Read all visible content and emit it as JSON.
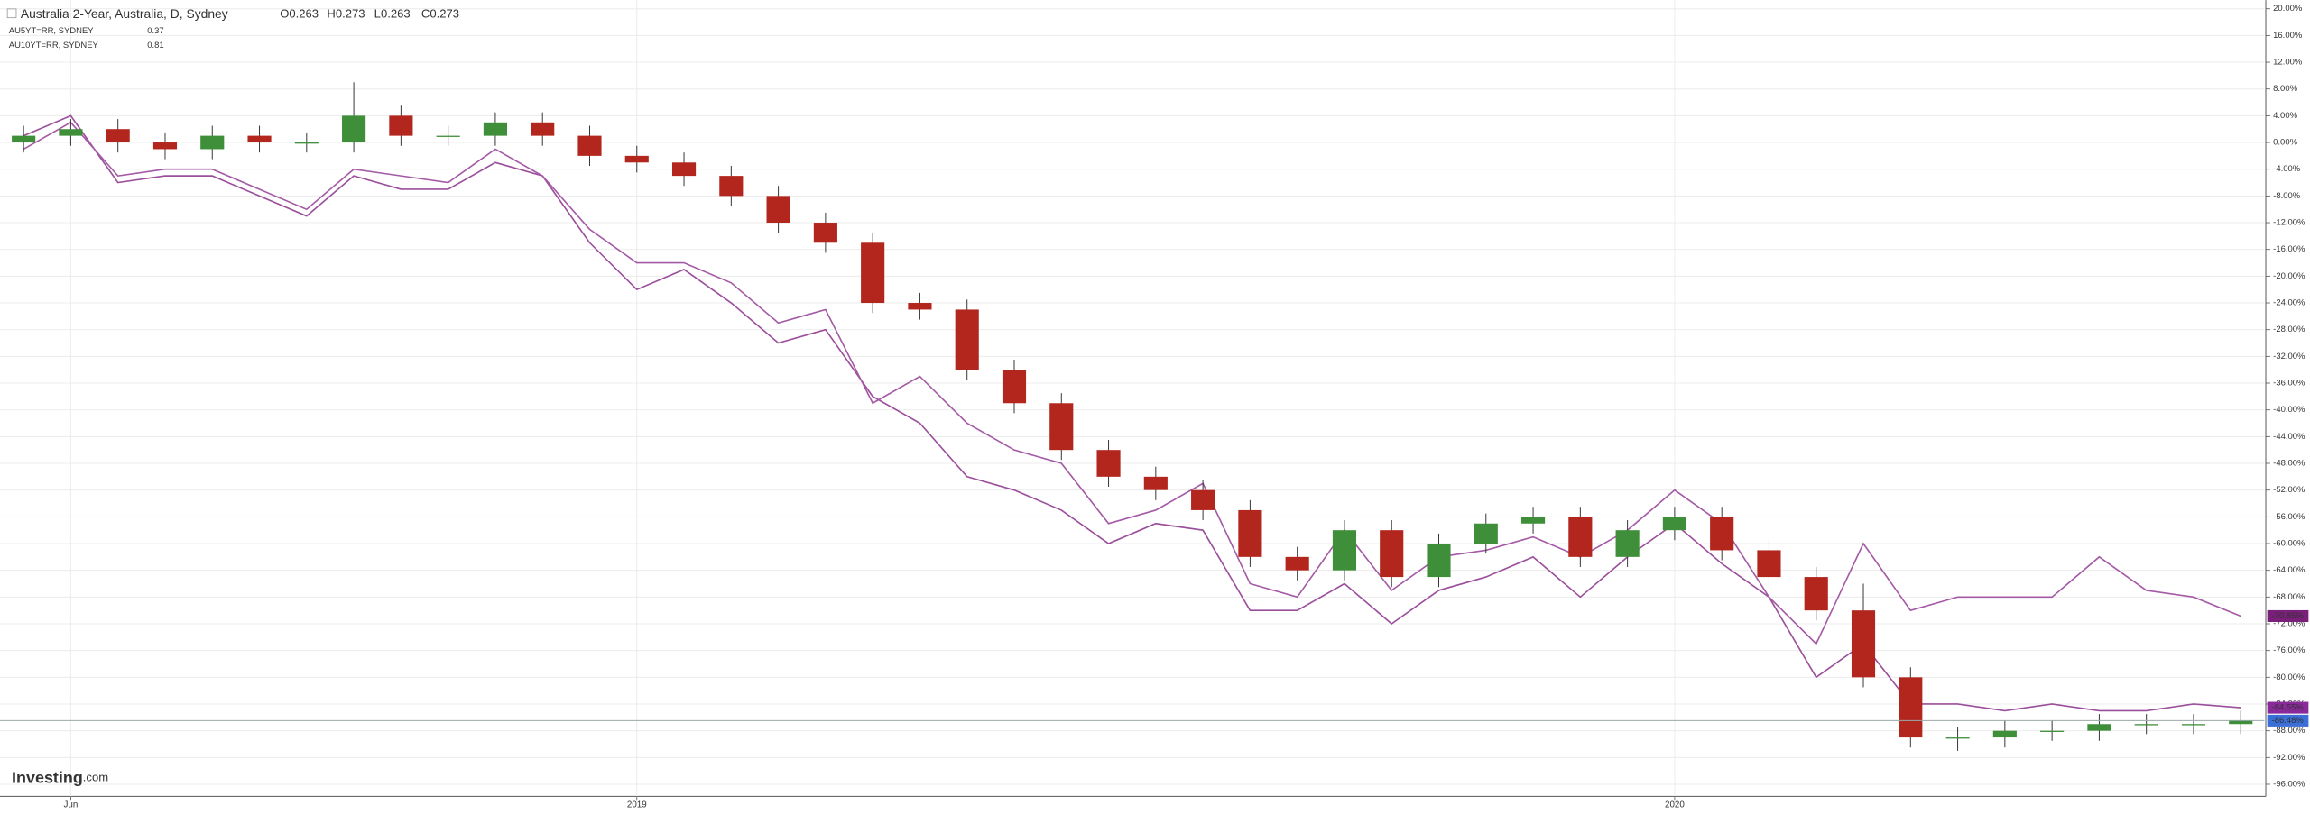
{
  "chart_data": {
    "type": "candlestick",
    "title": "Australia 2-Year, Australia, D, Sydney",
    "ohlc": [
      {
        "label": "O",
        "value": 0.263
      },
      {
        "label": "H",
        "value": 0.273
      },
      {
        "label": "L",
        "value": 0.263
      },
      {
        "label": "C",
        "value": 0.273
      }
    ],
    "categories": [
      null,
      "Jun",
      null,
      null,
      null,
      null,
      null,
      null,
      null,
      null,
      null,
      null,
      null,
      "2019",
      null,
      null,
      null,
      null,
      null,
      null,
      null,
      null,
      null,
      null,
      null,
      null,
      null,
      null,
      null,
      null,
      null,
      null,
      null,
      null,
      null,
      "2020",
      null,
      null,
      null,
      null,
      null,
      null,
      null,
      null,
      null,
      null,
      null,
      null
    ],
    "open": [
      0,
      1,
      2,
      0,
      -1,
      1,
      0,
      0,
      4,
      1,
      1,
      3,
      1,
      -2,
      -3,
      -5,
      -8,
      -12,
      -15,
      -24,
      -25,
      -34,
      -39,
      -46,
      -50,
      -52,
      -55,
      -62,
      -64,
      -58,
      -65,
      -60,
      -57,
      -56,
      -62,
      -58,
      -56,
      -61,
      -65,
      -70,
      -80,
      -89,
      -89,
      -88,
      -88,
      -87,
      -87,
      -87
    ],
    "high": [
      2.5,
      3.5,
      3.5,
      1.5,
      2.5,
      2.5,
      1.5,
      9,
      5.5,
      2.5,
      4.5,
      4.5,
      2.5,
      -0.5,
      -1.5,
      -3.5,
      -6.5,
      -10.5,
      -13.5,
      -22.5,
      -23.5,
      -32.5,
      -37.5,
      -44.5,
      -48.5,
      -50.5,
      -53.5,
      -60.5,
      -56.5,
      -56.5,
      -58.5,
      -55.5,
      -54.5,
      -54.5,
      -56.5,
      -54.5,
      -54.5,
      -59.5,
      -63.5,
      -66,
      -78.5,
      -87.5,
      -86.5,
      -86.5,
      -85.5,
      -85.5,
      -85.5,
      -85
    ],
    "low": [
      -1.5,
      -0.5,
      -1.5,
      -2.5,
      -2.5,
      -1.5,
      -1.5,
      -1.5,
      -0.5,
      -0.5,
      -0.5,
      -0.5,
      -3.5,
      -4.5,
      -6.5,
      -9.5,
      -13.5,
      -16.5,
      -25.5,
      -26.5,
      -35.5,
      -40.5,
      -47.5,
      -51.5,
      -53.5,
      -56.5,
      -63.5,
      -65.5,
      -65.5,
      -66.5,
      -66.5,
      -61.5,
      -58.5,
      -63.5,
      -63.5,
      -59.5,
      -62.5,
      -66.5,
      -71.5,
      -81.5,
      -90.5,
      -91,
      -90.5,
      -89.5,
      -89.5,
      -88.5,
      -88.5,
      -88.5
    ],
    "close": [
      1,
      2,
      0,
      -1,
      1,
      0,
      0,
      4,
      1,
      1,
      3,
      1,
      -2,
      -3,
      -5,
      -8,
      -12,
      -15,
      -24,
      -25,
      -34,
      -39,
      -46,
      -50,
      -52,
      -55,
      -62,
      -64,
      -58,
      -65,
      -60,
      -57,
      -56,
      -62,
      -58,
      -56,
      -61,
      -65,
      -70,
      -80,
      -89,
      -89,
      -88,
      -88,
      -87,
      -87,
      -87,
      -86.48
    ],
    "up_color": "#3f8f3a",
    "down_color": "#b3261e",
    "series": [
      {
        "name": "AU5YT=RR, SYDNEY",
        "last": 0.37,
        "last_color": "#a0224a",
        "color": "#9b4f9b",
        "values": [
          1,
          4,
          -6,
          -5,
          -5,
          -8,
          -11,
          -5,
          -7,
          -7,
          -3,
          -5,
          -15,
          -22,
          -19,
          -24,
          -30,
          -28,
          -38,
          -42,
          -50,
          -52,
          -55,
          -60,
          -57,
          -58,
          -70,
          -70,
          -66,
          -72,
          -67,
          -65,
          -62,
          -68,
          -62,
          -57,
          -63,
          -68,
          -80,
          -75,
          -84,
          -84,
          -85,
          -84,
          -85,
          -85,
          -84,
          -84.55
        ]
      },
      {
        "name": "AU10YT=RR, SYDNEY",
        "last": 0.81,
        "last_color": "#a0224a",
        "color": "#a45aa4",
        "values": [
          -1,
          3,
          -5,
          -4,
          -4,
          -7,
          -10,
          -4,
          -5,
          -6,
          -1,
          -5,
          -13,
          -18,
          -18,
          -21,
          -27,
          -25,
          -39,
          -35,
          -42,
          -46,
          -48,
          -57,
          -55,
          -51,
          -66,
          -68,
          -58,
          -67,
          -62,
          -61,
          -59,
          -62,
          -58,
          -52,
          -57,
          -68,
          -75,
          -60,
          -70,
          -68,
          -68,
          -68,
          -62,
          -67,
          -68,
          -70.85
        ]
      }
    ],
    "annotations": [
      {
        "label": "-70.85%",
        "value": -70.85,
        "color": "#7a1f7a"
      },
      {
        "label": "-84.55%",
        "value": -84.55,
        "color": "#8a2a9a"
      },
      {
        "label": "-86.48%",
        "value": -86.48,
        "color": "#3a6fd8"
      }
    ],
    "ylim": [
      -97.8,
      21.3
    ],
    "yticks": [
      {
        "value": 20,
        "label": "20.00%"
      },
      {
        "value": 16,
        "label": "16.00%"
      },
      {
        "value": 12,
        "label": "12.00%"
      },
      {
        "value": 8,
        "label": "8.00%"
      },
      {
        "value": 4,
        "label": "4.00%"
      },
      {
        "value": 0,
        "label": "0.00%"
      },
      {
        "value": -4,
        "label": "-4.00%"
      },
      {
        "value": -8,
        "label": "-8.00%"
      },
      {
        "value": -12,
        "label": "-12.00%"
      },
      {
        "value": -16,
        "label": "-16.00%"
      },
      {
        "value": -20,
        "label": "-20.00%"
      },
      {
        "value": -24,
        "label": "-24.00%"
      },
      {
        "value": -28,
        "label": "-28.00%"
      },
      {
        "value": -32,
        "label": "-32.00%"
      },
      {
        "value": -36,
        "label": "-36.00%"
      },
      {
        "value": -40,
        "label": "-40.00%"
      },
      {
        "value": -44,
        "label": "-44.00%"
      },
      {
        "value": -48,
        "label": "-48.00%"
      },
      {
        "value": -52,
        "label": "-52.00%"
      },
      {
        "value": -56,
        "label": "-56.00%"
      },
      {
        "value": -60,
        "label": "-60.00%"
      },
      {
        "value": -64,
        "label": "-64.00%"
      },
      {
        "value": -68,
        "label": "-68.00%"
      },
      {
        "value": -72,
        "label": "-72.00%"
      },
      {
        "value": -76,
        "label": "-76.00%"
      },
      {
        "value": -80,
        "label": "-80.00%"
      },
      {
        "value": -84,
        "label": "-84.00%"
      },
      {
        "value": -88,
        "label": "-88.00%"
      },
      {
        "value": -92,
        "label": "-92.00%"
      },
      {
        "value": -96,
        "label": "-96.00%"
      }
    ],
    "grid": true,
    "brand": {
      "name": "Investing",
      "suffix": ".com"
    }
  }
}
